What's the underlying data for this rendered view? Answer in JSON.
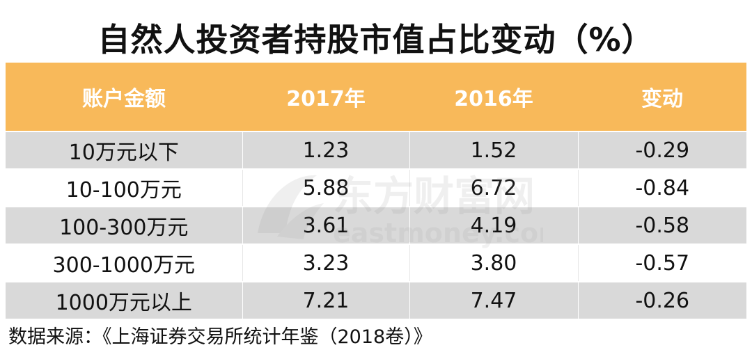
{
  "title": "自然人投资者持股市值占比变动（%）",
  "chart_data": {
    "type": "table",
    "columns": [
      "账户金额",
      "2017年",
      "2016年",
      "变动"
    ],
    "rows": [
      [
        "10万元以下",
        "1.23",
        "1.52",
        "-0.29"
      ],
      [
        "10-100万元",
        "5.88",
        "6.72",
        "-0.84"
      ],
      [
        "100-300万元",
        "3.61",
        "4.19",
        "-0.58"
      ],
      [
        "300-1000万元",
        "3.23",
        "3.80",
        "-0.57"
      ],
      [
        "1000万元以上",
        "7.21",
        "7.47",
        "-0.26"
      ]
    ]
  },
  "watermark": {
    "text_cn": "东方财富网",
    "text_en": "eastmoney.com"
  },
  "source": "数据来源：《上海证券交易所统计年鉴（2018卷）》",
  "colors": {
    "header_bg": "#f8b95a",
    "header_text": "#ffffff",
    "stripe": "#d9d9d9"
  }
}
